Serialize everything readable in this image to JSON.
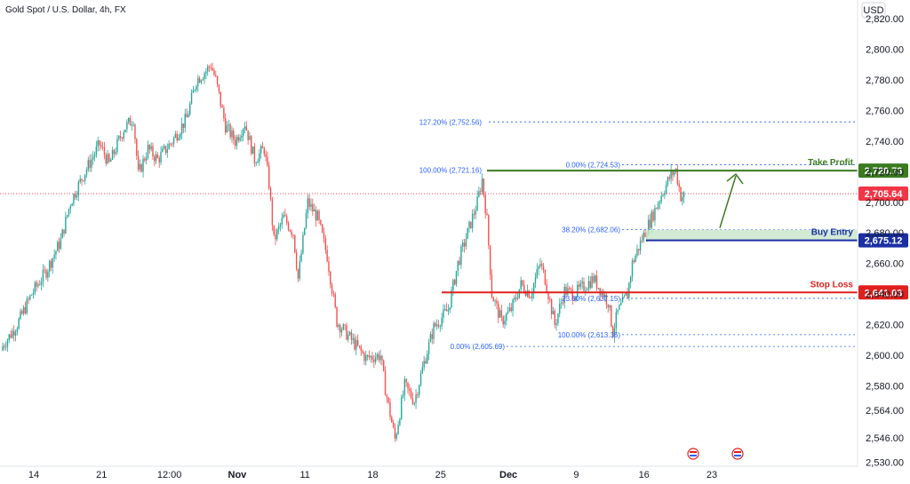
{
  "chart_title": "Gold Spot / U.S. Dollar, 4h, FX",
  "currency_label": "USD",
  "colors": {
    "up": "#26a69a",
    "down": "#ef5350",
    "take_profit": "#3b7a1f",
    "buy_entry": "#1a2fa3",
    "stop_loss": "#e0201d",
    "current_price": "#f23645",
    "fib": "#2962ff"
  },
  "chart_data": {
    "type": "candlestick",
    "y_range": [
      2525,
      2830
    ],
    "y_ticks": [
      "2,820.00",
      "2,800.00",
      "2,780.00",
      "2,760.00",
      "2,740.00",
      "2,720.00",
      "2,700.00",
      "2,680.00",
      "2,660.00",
      "2,640.00",
      "2,620.00",
      "2,600.00",
      "2,580.00",
      "2,564.00",
      "2,546.00",
      "2,530.00"
    ],
    "y_tick_values": [
      2820,
      2800,
      2780,
      2760,
      2740,
      2720,
      2700,
      2680,
      2660,
      2640,
      2620,
      2600,
      2580,
      2564,
      2546,
      2530
    ],
    "x_ticks": [
      "14",
      "21",
      "12:00",
      "Nov",
      "11",
      "18",
      "25",
      "Dec",
      "9",
      "16",
      "23"
    ],
    "x_tick_index": [
      0,
      14,
      28,
      42,
      56,
      70,
      84,
      98,
      112,
      126,
      140
    ],
    "bold_x_ticks": [
      "Nov",
      "Dec"
    ],
    "price_path": [
      [
        0,
        2606
      ],
      [
        3,
        2620
      ],
      [
        6,
        2640
      ],
      [
        9,
        2655
      ],
      [
        12,
        2675
      ],
      [
        14,
        2700
      ],
      [
        17,
        2720
      ],
      [
        20,
        2738
      ],
      [
        22,
        2725
      ],
      [
        25,
        2748
      ],
      [
        27,
        2755
      ],
      [
        28,
        2718
      ],
      [
        30,
        2735
      ],
      [
        32,
        2728
      ],
      [
        35,
        2740
      ],
      [
        38,
        2755
      ],
      [
        40,
        2780
      ],
      [
        42,
        2786
      ],
      [
        43,
        2790
      ],
      [
        44,
        2780
      ],
      [
        46,
        2750
      ],
      [
        48,
        2740
      ],
      [
        50,
        2752
      ],
      [
        52,
        2728
      ],
      [
        54,
        2735
      ],
      [
        55,
        2712
      ],
      [
        56,
        2675
      ],
      [
        58,
        2690
      ],
      [
        60,
        2680
      ],
      [
        61,
        2650
      ],
      [
        63,
        2700
      ],
      [
        65,
        2690
      ],
      [
        67,
        2665
      ],
      [
        69,
        2622
      ],
      [
        72,
        2610
      ],
      [
        75,
        2598
      ],
      [
        78,
        2600
      ],
      [
        79,
        2578
      ],
      [
        81,
        2545
      ],
      [
        83,
        2580
      ],
      [
        85,
        2570
      ],
      [
        87,
        2595
      ],
      [
        89,
        2618
      ],
      [
        92,
        2630
      ],
      [
        94,
        2660
      ],
      [
        96,
        2680
      ],
      [
        98,
        2700
      ],
      [
        99,
        2715
      ],
      [
        100,
        2688
      ],
      [
        101,
        2640
      ],
      [
        103,
        2622
      ],
      [
        105,
        2630
      ],
      [
        107,
        2646
      ],
      [
        109,
        2640
      ],
      [
        111,
        2660
      ],
      [
        112,
        2650
      ],
      [
        114,
        2620
      ],
      [
        116,
        2642
      ],
      [
        118,
        2640
      ],
      [
        120,
        2645
      ],
      [
        122,
        2650
      ],
      [
        125,
        2635
      ],
      [
        126,
        2615
      ],
      [
        127,
        2628
      ],
      [
        129,
        2640
      ],
      [
        130,
        2660
      ],
      [
        132,
        2676
      ],
      [
        134,
        2690
      ],
      [
        136,
        2705
      ],
      [
        138,
        2718
      ],
      [
        139,
        2721
      ],
      [
        140,
        2704
      ]
    ],
    "fib_labels": {
      "f1272": "127.20% (2,752.56)",
      "f100a": "100.00% (2,721.16)",
      "f0a": "0.00% (2,724.53)",
      "f382": "38.20% (2,682.06)",
      "f236": "23.60% (2,637.15)",
      "f100b": "100.00% (2,613.36)",
      "f0b": "0.00% (2,605.69)"
    },
    "fib_values": {
      "f1272": 2752.56,
      "f100a": 2721.16,
      "f0a": 2724.53,
      "f382": 2682.06,
      "f236": 2637.15,
      "f100b": 2613.36,
      "f0b": 2605.69
    },
    "levels": {
      "take_profit": {
        "label": "Take Profit",
        "value_text": "2,720.73",
        "value": 2720.73
      },
      "buy_entry": {
        "label": "Buy Entry",
        "value_text": "2,675.12",
        "value": 2675.12
      },
      "stop_loss": {
        "label": "Stop Loss",
        "value_text": "2,641.03",
        "value": 2641.03
      }
    },
    "current_price": {
      "value_text": "2,705.64",
      "value": 2705.64
    }
  }
}
